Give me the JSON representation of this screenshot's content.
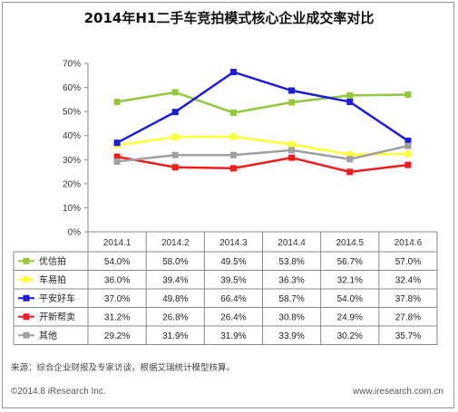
{
  "chart_data": {
    "type": "line",
    "title": "2014年H1二手车竞拍模式核心企业成交率对比",
    "categories": [
      "2014.1",
      "2014.2",
      "2014.3",
      "2014.4",
      "2014.5",
      "2014.6"
    ],
    "ylim": [
      0,
      70
    ],
    "yticks": [
      "0%",
      "10%",
      "20%",
      "30%",
      "40%",
      "50%",
      "60%",
      "70%"
    ],
    "grid": false,
    "legend": "table-below",
    "series": [
      {
        "name": "优信拍",
        "color": "#92c83e",
        "values": [
          54.0,
          58.0,
          49.5,
          53.8,
          56.7,
          57.0
        ],
        "labels": [
          "54.0%",
          "58.0%",
          "49.5%",
          "53.8%",
          "56.7%",
          "57.0%"
        ]
      },
      {
        "name": "车易拍",
        "color": "#ffff33",
        "values": [
          36.0,
          39.4,
          39.5,
          36.3,
          32.1,
          32.4
        ],
        "labels": [
          "36.0%",
          "39.4%",
          "39.5%",
          "36.3%",
          "32.1%",
          "32.4%"
        ]
      },
      {
        "name": "平安好车",
        "color": "#1c1cdc",
        "values": [
          37.0,
          49.8,
          66.4,
          58.7,
          54.0,
          37.8
        ],
        "labels": [
          "37.0%",
          "49.8%",
          "66.4%",
          "58.7%",
          "54.0%",
          "37.8%"
        ]
      },
      {
        "name": "开新帮卖",
        "color": "#ee1c1c",
        "values": [
          31.2,
          26.8,
          26.4,
          30.8,
          24.9,
          27.8
        ],
        "labels": [
          "31.2%",
          "26.8%",
          "26.4%",
          "30.8%",
          "24.9%",
          "27.8%"
        ]
      },
      {
        "name": "其他",
        "color": "#a0a0a0",
        "values": [
          29.2,
          31.9,
          31.9,
          33.9,
          30.2,
          35.7
        ],
        "labels": [
          "29.2%",
          "31.9%",
          "31.9%",
          "33.9%",
          "30.2%",
          "35.7%"
        ]
      }
    ]
  },
  "footer": {
    "source": "来源：综合企业财报及专家访谈，根据艾瑞统计模型核算。",
    "copyright": "©2014.8 iResearch Inc.",
    "website": "www.iresearch.com.cn"
  }
}
